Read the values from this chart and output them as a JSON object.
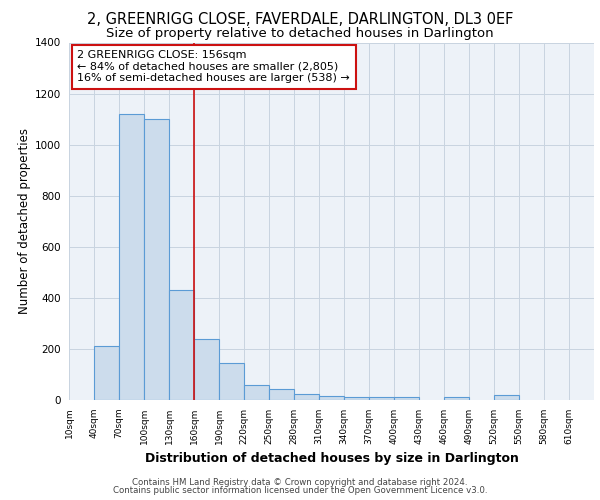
{
  "title1": "2, GREENRIGG CLOSE, FAVERDALE, DARLINGTON, DL3 0EF",
  "title2": "Size of property relative to detached houses in Darlington",
  "xlabel": "Distribution of detached houses by size in Darlington",
  "ylabel": "Number of detached properties",
  "bin_labels": [
    "10sqm",
    "40sqm",
    "70sqm",
    "100sqm",
    "130sqm",
    "160sqm",
    "190sqm",
    "220sqm",
    "250sqm",
    "280sqm",
    "310sqm",
    "340sqm",
    "370sqm",
    "400sqm",
    "430sqm",
    "460sqm",
    "490sqm",
    "520sqm",
    "550sqm",
    "580sqm",
    "610sqm"
  ],
  "bin_edges": [
    10,
    40,
    70,
    100,
    130,
    160,
    190,
    220,
    250,
    280,
    310,
    340,
    370,
    400,
    430,
    460,
    490,
    520,
    550,
    580,
    610
  ],
  "bar_heights": [
    0,
    210,
    1120,
    1100,
    430,
    240,
    145,
    60,
    45,
    25,
    15,
    10,
    10,
    10,
    0,
    10,
    0,
    20,
    0,
    0,
    0
  ],
  "bar_color": "#ccdcec",
  "bar_edge_color": "#5b9bd5",
  "vline_x": 160,
  "vline_color": "#cc1111",
  "annotation_text": "2 GREENRIGG CLOSE: 156sqm\n← 84% of detached houses are smaller (2,805)\n16% of semi-detached houses are larger (538) →",
  "annotation_box_color": "white",
  "annotation_box_edge_color": "#cc1111",
  "ylim": [
    0,
    1400
  ],
  "yticks": [
    0,
    200,
    400,
    600,
    800,
    1000,
    1200,
    1400
  ],
  "footer1": "Contains HM Land Registry data © Crown copyright and database right 2024.",
  "footer2": "Contains public sector information licensed under the Open Government Licence v3.0.",
  "bg_color": "#edf2f8",
  "grid_color": "#c8d4e0",
  "title1_fontsize": 10.5,
  "title2_fontsize": 9.5,
  "xlabel_fontsize": 9,
  "ylabel_fontsize": 8.5,
  "ann_fontsize": 8,
  "footer_fontsize": 6.2
}
